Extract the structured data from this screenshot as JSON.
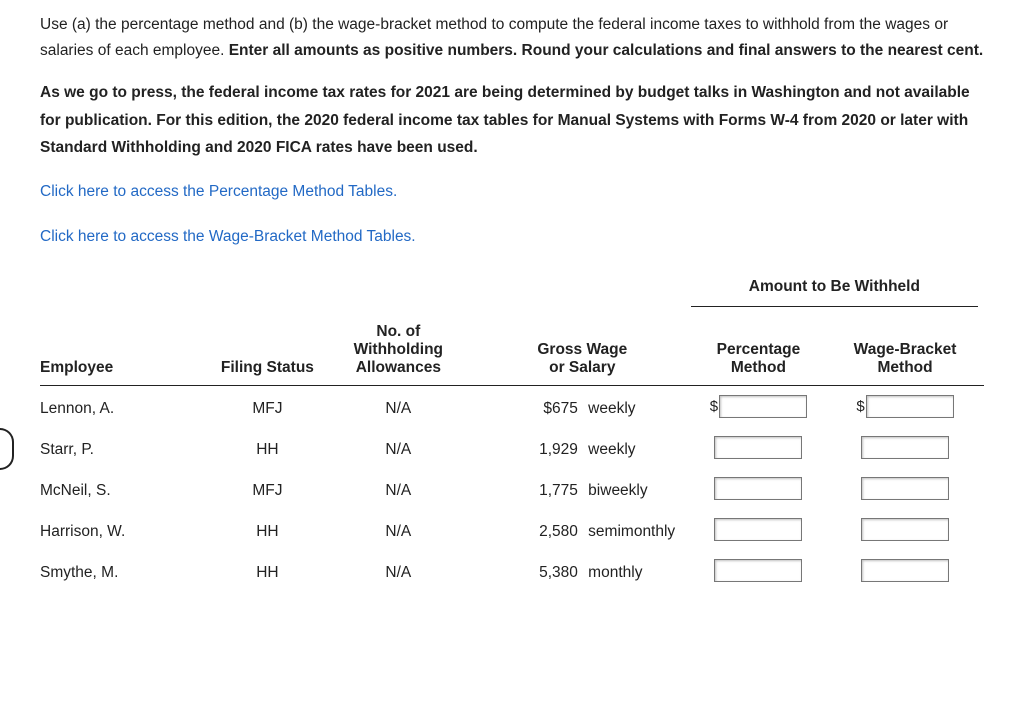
{
  "intro": {
    "part1": "Use (a) the percentage method and (b) the wage-bracket method to compute the federal income taxes to withhold from the wages or salaries of each employee. ",
    "bold": "Enter all amounts as positive numbers. Round your calculations and final answers to the nearest cent."
  },
  "note": "As we go to press, the federal income tax rates for 2021 are being determined by budget talks in Washington and not available for publication. For this edition, the 2020 federal income tax tables for Manual Systems with Forms W-4 from 2020 or later with Standard Withholding and 2020 FICA rates have been used.",
  "links": {
    "percentage": "Click here to access the Percentage Method Tables.",
    "wagebracket": "Click here to access the Wage-Bracket Method Tables."
  },
  "table": {
    "group_header": "Amount to Be Withheld",
    "headers": {
      "employee": "Employee",
      "filing_status": "Filing Status",
      "allowances_l1": "No. of",
      "allowances_l2": "Withholding",
      "allowances_l3": "Allowances",
      "gross_l1": "Gross Wage",
      "gross_l2": "or Salary",
      "pm_l1": "Percentage",
      "pm_l2": "Method",
      "wb_l1": "Wage-Bracket",
      "wb_l2": "Method"
    },
    "currency": "$",
    "rows": [
      {
        "employee": "Lennon, A.",
        "filing": "MFJ",
        "allow": "N/A",
        "gross_num": "$675",
        "gross_per": "weekly",
        "show_dollar": true
      },
      {
        "employee": "Starr, P.",
        "filing": "HH",
        "allow": "N/A",
        "gross_num": "1,929",
        "gross_per": "weekly",
        "show_dollar": false
      },
      {
        "employee": "McNeil, S.",
        "filing": "MFJ",
        "allow": "N/A",
        "gross_num": "1,775",
        "gross_per": "biweekly",
        "show_dollar": false
      },
      {
        "employee": "Harrison, W.",
        "filing": "HH",
        "allow": "N/A",
        "gross_num": "2,580",
        "gross_per": "semimonthly",
        "show_dollar": false
      },
      {
        "employee": "Smythe, M.",
        "filing": "HH",
        "allow": "N/A",
        "gross_num": "5,380",
        "gross_per": "monthly",
        "show_dollar": false
      }
    ]
  }
}
